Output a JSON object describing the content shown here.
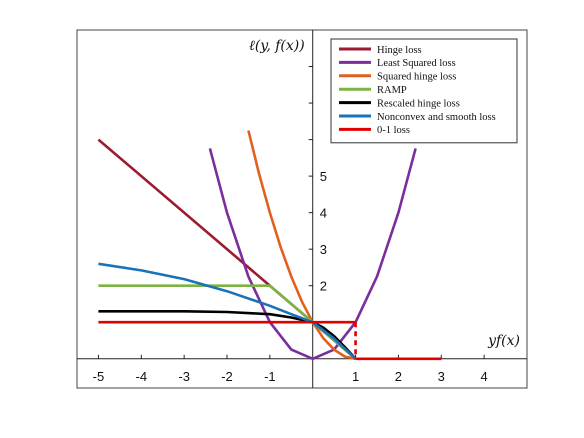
{
  "chart_data": {
    "type": "line",
    "title": "",
    "xlabel": "yf(x)",
    "ylabel": "ℓ(y, f(x))",
    "xlim": [
      -5.5,
      5.0
    ],
    "ylim": [
      -0.8,
      9.0
    ],
    "x_ticks": [
      -5,
      -4,
      -3,
      -2,
      -1,
      1,
      2,
      3,
      4
    ],
    "y_ticks": [
      2,
      3,
      4,
      5
    ],
    "grid": false,
    "legend_position": "top-right",
    "series": [
      {
        "name": "Hinge loss",
        "color": "#9b1b30",
        "points": [
          [
            -5,
            6
          ],
          [
            -1,
            2
          ],
          [
            0,
            1
          ],
          [
            1,
            0
          ]
        ]
      },
      {
        "name": "Least Squared loss",
        "color": "#7b2d9e",
        "points": [
          [
            -2.4,
            5.76
          ],
          [
            -2,
            4
          ],
          [
            -1.5,
            2.25
          ],
          [
            -1,
            1
          ],
          [
            -0.5,
            0.25
          ],
          [
            0,
            0
          ],
          [
            0.5,
            0.25
          ],
          [
            1,
            1
          ],
          [
            1.5,
            2.25
          ],
          [
            2,
            4
          ],
          [
            2.4,
            5.76
          ]
        ]
      },
      {
        "name": "Squared hinge loss",
        "color": "#e0611f",
        "points": [
          [
            -1.5,
            6.25
          ],
          [
            -1.25,
            5.06
          ],
          [
            -1,
            4
          ],
          [
            -0.75,
            3.06
          ],
          [
            -0.5,
            2.25
          ],
          [
            -0.25,
            1.56
          ],
          [
            0,
            1
          ],
          [
            0.25,
            0.56
          ],
          [
            0.5,
            0.25
          ],
          [
            0.75,
            0.06
          ],
          [
            1,
            0
          ]
        ]
      },
      {
        "name": "RAMP",
        "color": "#7cb342",
        "points": [
          [
            -5,
            2
          ],
          [
            -1,
            2
          ],
          [
            1,
            0
          ]
        ]
      },
      {
        "name": "Rescaled hinge loss",
        "color": "#000000",
        "points": [
          [
            -5,
            1.3
          ],
          [
            -3,
            1.3
          ],
          [
            -2,
            1.28
          ],
          [
            -1,
            1.22
          ],
          [
            -0.5,
            1.13
          ],
          [
            0,
            1
          ],
          [
            0.25,
            0.85
          ],
          [
            0.5,
            0.62
          ],
          [
            0.75,
            0.32
          ],
          [
            1,
            0
          ]
        ]
      },
      {
        "name": "Nonconvex and smooth loss",
        "color": "#1a72b8",
        "points": [
          [
            -5,
            2.6
          ],
          [
            -4,
            2.42
          ],
          [
            -3,
            2.18
          ],
          [
            -2,
            1.85
          ],
          [
            -1,
            1.45
          ],
          [
            -0.5,
            1.22
          ],
          [
            0,
            1
          ],
          [
            0.5,
            0.55
          ],
          [
            1,
            0
          ]
        ]
      },
      {
        "name": "0-1 loss",
        "color": "#e00000",
        "points": [
          [
            -5,
            1
          ],
          [
            1,
            1
          ],
          [
            1,
            0
          ],
          [
            3,
            0
          ]
        ],
        "dashed_segment": [
          [
            1,
            1
          ],
          [
            1,
            0
          ]
        ]
      }
    ]
  }
}
